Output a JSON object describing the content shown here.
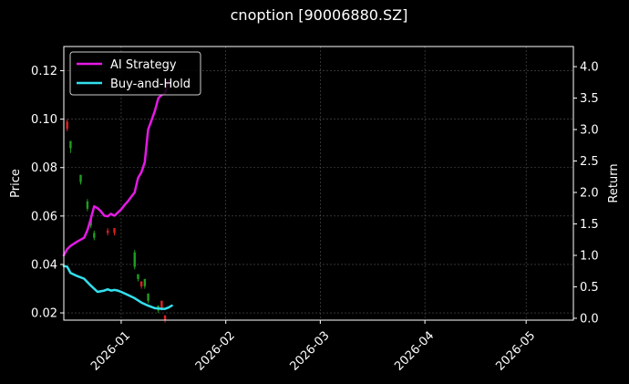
{
  "chart_data": {
    "type": "line",
    "title": "cnoption [90006880.SZ]",
    "xlabel": "",
    "ylabel": "Price",
    "y2label": "Return",
    "x_ticks": [
      "2026-01",
      "2026-02",
      "2026-03",
      "2026-04",
      "2026-05"
    ],
    "x_range": [
      "2025-12-15",
      "2026-05-15"
    ],
    "y_ticks": [
      "0.02",
      "0.04",
      "0.06",
      "0.08",
      "0.10",
      "0.12"
    ],
    "ylim": [
      0.017,
      0.13
    ],
    "y2_ticks": [
      "0.0",
      "0.5",
      "1.0",
      "1.5",
      "2.0",
      "2.5",
      "3.0",
      "3.5",
      "4.0"
    ],
    "y2lim": [
      -0.03,
      4.32
    ],
    "grid": true,
    "legend_position": "top-left",
    "colors": {
      "background": "#000000",
      "ai_strategy": "#e619e6",
      "buy_and_hold": "#33e0ee",
      "candle_up": "#1f9e1f",
      "candle_down": "#e02020",
      "grid": "#555555"
    },
    "candles": [
      {
        "date": "2025-12-16",
        "open": 0.096,
        "close": 0.099,
        "high": 0.1,
        "low": 0.095,
        "dir": "down"
      },
      {
        "date": "2025-12-17",
        "open": 0.091,
        "close": 0.088,
        "high": 0.091,
        "low": 0.086,
        "dir": "up"
      },
      {
        "date": "2025-12-20",
        "open": 0.077,
        "close": 0.074,
        "high": 0.077,
        "low": 0.073,
        "dir": "up"
      },
      {
        "date": "2025-12-22",
        "open": 0.066,
        "close": 0.063,
        "high": 0.067,
        "low": 0.062,
        "dir": "up"
      },
      {
        "date": "2025-12-23",
        "open": 0.059,
        "close": 0.056,
        "high": 0.059,
        "low": 0.055,
        "dir": "up"
      },
      {
        "date": "2025-12-24",
        "open": 0.053,
        "close": 0.051,
        "high": 0.054,
        "low": 0.05,
        "dir": "up"
      },
      {
        "date": "2025-12-28",
        "open": 0.054,
        "close": 0.053,
        "high": 0.055,
        "low": 0.052,
        "dir": "down"
      },
      {
        "date": "2025-12-30",
        "open": 0.055,
        "close": 0.053,
        "high": 0.055,
        "low": 0.052,
        "dir": "down"
      },
      {
        "date": "2026-01-05",
        "open": 0.045,
        "close": 0.039,
        "high": 0.046,
        "low": 0.038,
        "dir": "up"
      },
      {
        "date": "2026-01-06",
        "open": 0.036,
        "close": 0.034,
        "high": 0.036,
        "low": 0.033,
        "dir": "up"
      },
      {
        "date": "2026-01-07",
        "open": 0.033,
        "close": 0.031,
        "high": 0.033,
        "low": 0.03,
        "dir": "down"
      },
      {
        "date": "2026-01-08",
        "open": 0.034,
        "close": 0.031,
        "high": 0.034,
        "low": 0.03,
        "dir": "up"
      },
      {
        "date": "2026-01-09",
        "open": 0.028,
        "close": 0.025,
        "high": 0.028,
        "low": 0.024,
        "dir": "up"
      },
      {
        "date": "2026-01-12",
        "open": 0.023,
        "close": 0.021,
        "high": 0.023,
        "low": 0.02,
        "dir": "up"
      },
      {
        "date": "2026-01-13",
        "open": 0.025,
        "close": 0.022,
        "high": 0.025,
        "low": 0.021,
        "dir": "down"
      },
      {
        "date": "2026-01-14",
        "open": 0.019,
        "close": 0.017,
        "high": 0.019,
        "low": 0.016,
        "dir": "down"
      }
    ],
    "series": [
      {
        "name": "AI Strategy",
        "axis": "right",
        "color": "#e619e6",
        "points": [
          [
            "2025-12-15",
            1.0
          ],
          [
            "2025-12-16",
            1.1
          ],
          [
            "2025-12-17",
            1.15
          ],
          [
            "2025-12-19",
            1.22
          ],
          [
            "2025-12-21",
            1.28
          ],
          [
            "2025-12-22",
            1.4
          ],
          [
            "2025-12-23",
            1.58
          ],
          [
            "2025-12-24",
            1.78
          ],
          [
            "2025-12-25",
            1.75
          ],
          [
            "2025-12-26",
            1.7
          ],
          [
            "2025-12-27",
            1.63
          ],
          [
            "2025-12-28",
            1.62
          ],
          [
            "2025-12-29",
            1.66
          ],
          [
            "2025-12-30",
            1.63
          ],
          [
            "2025-12-31",
            1.68
          ],
          [
            "2026-01-01",
            1.73
          ],
          [
            "2026-01-02",
            1.8
          ],
          [
            "2026-01-03",
            1.86
          ],
          [
            "2026-01-04",
            1.93
          ],
          [
            "2026-01-05",
            2.0
          ],
          [
            "2026-01-06",
            2.23
          ],
          [
            "2026-01-07",
            2.32
          ],
          [
            "2026-01-08",
            2.48
          ],
          [
            "2026-01-09",
            3.0
          ],
          [
            "2026-01-10",
            3.15
          ],
          [
            "2026-01-11",
            3.3
          ],
          [
            "2026-01-12",
            3.5
          ],
          [
            "2026-01-13",
            3.55
          ],
          [
            "2026-01-14",
            3.58
          ],
          [
            "2026-01-15",
            3.78
          ]
        ]
      },
      {
        "name": "Buy-and-Hold",
        "axis": "right",
        "color": "#33e0ee",
        "points": [
          [
            "2025-12-15",
            0.83
          ],
          [
            "2025-12-16",
            0.82
          ],
          [
            "2025-12-17",
            0.72
          ],
          [
            "2025-12-19",
            0.67
          ],
          [
            "2025-12-21",
            0.63
          ],
          [
            "2025-12-23",
            0.52
          ],
          [
            "2025-12-25",
            0.42
          ],
          [
            "2025-12-27",
            0.44
          ],
          [
            "2025-12-28",
            0.46
          ],
          [
            "2025-12-29",
            0.44
          ],
          [
            "2025-12-30",
            0.45
          ],
          [
            "2025-12-31",
            0.44
          ],
          [
            "2026-01-01",
            0.42
          ],
          [
            "2026-01-03",
            0.37
          ],
          [
            "2026-01-05",
            0.32
          ],
          [
            "2026-01-07",
            0.25
          ],
          [
            "2026-01-09",
            0.2
          ],
          [
            "2026-01-11",
            0.16
          ],
          [
            "2026-01-13",
            0.15
          ],
          [
            "2026-01-14",
            0.15
          ],
          [
            "2026-01-15",
            0.17
          ],
          [
            "2026-01-16",
            0.2
          ]
        ]
      }
    ]
  }
}
